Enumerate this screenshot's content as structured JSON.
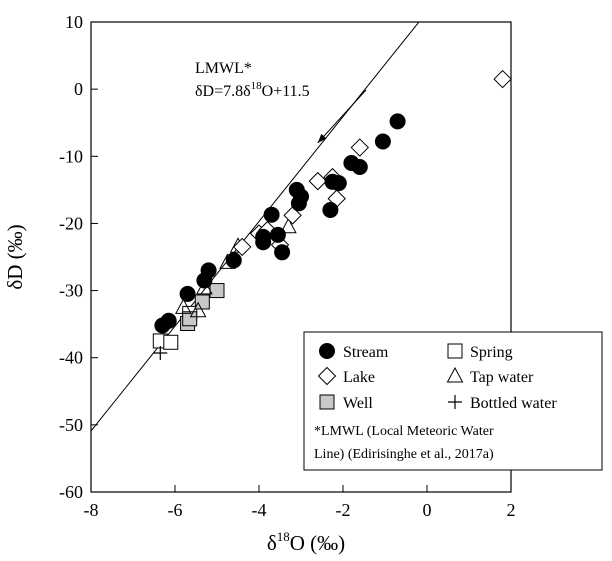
{
  "chart_data": {
    "type": "scatter",
    "title": "",
    "xlabel": {
      "pre": "δ",
      "sup": "18",
      "post": "O (‰)"
    },
    "ylabel": "δD (‰)",
    "xlim": [
      -8,
      2
    ],
    "ylim": [
      -60,
      10
    ],
    "x_ticks": [
      -8,
      -6,
      -4,
      -2,
      0,
      2
    ],
    "y_ticks": [
      -60,
      -50,
      -40,
      -30,
      -20,
      -10,
      0,
      10
    ],
    "x_tick_labels": [
      "-8",
      "-6",
      "-4",
      "-2",
      "0",
      "2"
    ],
    "y_tick_labels": [
      "-60",
      "-50",
      "-40",
      "-30",
      "-20",
      "-10",
      "0",
      "10"
    ],
    "grid": false,
    "lmwl": {
      "slope": 7.8,
      "intercept": 11.5,
      "label_line1": "LMWL*",
      "label_line2_pre": "δD=7.8δ",
      "label_line2_sup": "18",
      "label_line2_post": "O+11.5",
      "arrow_target": [
        -2.6,
        -8
      ]
    },
    "series": [
      {
        "name": "Stream",
        "marker": "circle-filled",
        "points": [
          [
            -6.3,
            -35.2
          ],
          [
            -6.15,
            -34.5
          ],
          [
            -5.7,
            -30.5
          ],
          [
            -5.2,
            -27.0
          ],
          [
            -4.6,
            -25.5
          ],
          [
            -3.9,
            -22.8
          ],
          [
            -3.7,
            -18.7
          ],
          [
            -3.55,
            -21.7
          ],
          [
            -3.45,
            -24.3
          ],
          [
            -3.1,
            -15.0
          ],
          [
            -3.0,
            -16.0
          ],
          [
            -3.05,
            -17.0
          ],
          [
            -2.3,
            -18.0
          ],
          [
            -2.25,
            -13.8
          ],
          [
            -2.1,
            -14.0
          ],
          [
            -1.8,
            -11.0
          ],
          [
            -1.6,
            -11.6
          ],
          [
            -1.05,
            -7.8
          ],
          [
            -0.7,
            -4.8
          ],
          [
            -3.9,
            -22.0
          ],
          [
            -5.3,
            -28.5
          ]
        ]
      },
      {
        "name": "Spring",
        "marker": "square-open",
        "points": [
          [
            -6.35,
            -37.5
          ],
          [
            -6.1,
            -37.7
          ],
          [
            -5.65,
            -33.4
          ]
        ]
      },
      {
        "name": "Lake",
        "marker": "diamond-open",
        "points": [
          [
            -4.4,
            -23.5
          ],
          [
            -4.0,
            -21.5
          ],
          [
            -3.8,
            -21.0
          ],
          [
            -3.5,
            -23.2
          ],
          [
            -3.2,
            -18.8
          ],
          [
            -2.6,
            -13.7
          ],
          [
            -2.25,
            -13.1
          ],
          [
            -2.15,
            -16.3
          ],
          [
            -1.6,
            -8.7
          ],
          [
            1.8,
            1.5
          ]
        ]
      },
      {
        "name": "Tap water",
        "marker": "triangle-open",
        "points": [
          [
            -5.45,
            -33.0
          ],
          [
            -5.3,
            -29.6
          ],
          [
            -4.75,
            -25.8
          ],
          [
            -4.5,
            -23.4
          ],
          [
            -3.3,
            -20.5
          ],
          [
            -5.8,
            -32.5
          ]
        ]
      },
      {
        "name": "Well",
        "marker": "square-gray",
        "points": [
          [
            -5.7,
            -34.9
          ],
          [
            -5.65,
            -34.2
          ],
          [
            -5.35,
            -31.7
          ],
          [
            -5.0,
            -30.0
          ]
        ]
      },
      {
        "name": "Bottled water",
        "marker": "plus",
        "points": [
          [
            -6.35,
            -39.3
          ],
          [
            -4.6,
            -25.3
          ]
        ]
      }
    ],
    "legend": {
      "placement": "bottom-right",
      "entries": [
        "Stream",
        "Spring",
        "Lake",
        "Tap water",
        "Well",
        "Bottled water"
      ],
      "note_line1": "*LMWL (Local Meteoric Water",
      "note_line2": "Line) (Edirisinghe et al., 2017a)"
    }
  }
}
